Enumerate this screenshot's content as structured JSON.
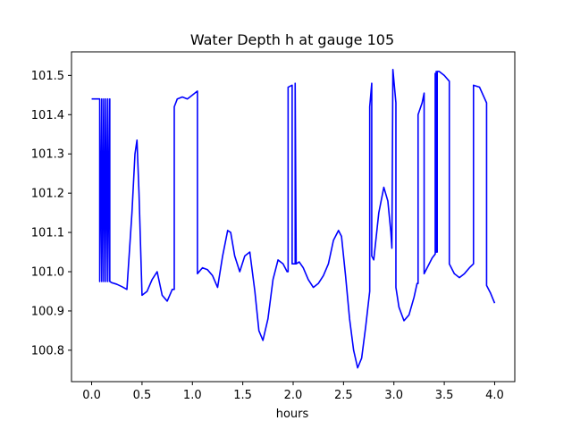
{
  "chart_data": {
    "type": "line",
    "title": "Water Depth h at gauge 105",
    "xlabel": "hours",
    "ylabel": "",
    "xlim": [
      -0.2,
      4.2
    ],
    "ylim": [
      100.72,
      101.56
    ],
    "grid": false,
    "x_ticks": [
      0.0,
      0.5,
      1.0,
      1.5,
      2.0,
      2.5,
      3.0,
      3.5,
      4.0
    ],
    "x_tick_labels": [
      "0.0",
      "0.5",
      "1.0",
      "1.5",
      "2.0",
      "2.5",
      "3.0",
      "3.5",
      "4.0"
    ],
    "y_ticks": [
      100.8,
      100.9,
      101.0,
      101.1,
      101.2,
      101.3,
      101.4,
      101.5
    ],
    "y_tick_labels": [
      "100.8",
      "100.9",
      "101.0",
      "101.1",
      "101.2",
      "101.3",
      "101.4",
      "101.5"
    ],
    "series": [
      {
        "color": "#0000ff",
        "x": [
          0.0,
          0.08,
          0.08,
          0.1,
          0.1,
          0.12,
          0.12,
          0.14,
          0.14,
          0.16,
          0.16,
          0.18,
          0.18,
          0.2,
          0.25,
          0.3,
          0.35,
          0.4,
          0.43,
          0.45,
          0.47,
          0.5,
          0.55,
          0.6,
          0.65,
          0.7,
          0.75,
          0.8,
          0.82,
          0.82,
          0.85,
          0.9,
          0.95,
          1.0,
          1.05,
          1.05,
          1.1,
          1.15,
          1.2,
          1.25,
          1.3,
          1.35,
          1.38,
          1.42,
          1.47,
          1.52,
          1.57,
          1.62,
          1.66,
          1.7,
          1.75,
          1.8,
          1.85,
          1.9,
          1.94,
          1.95,
          1.95,
          1.99,
          1.99,
          2.02,
          2.02,
          2.03,
          2.06,
          2.1,
          2.15,
          2.2,
          2.25,
          2.3,
          2.35,
          2.4,
          2.45,
          2.48,
          2.52,
          2.56,
          2.6,
          2.64,
          2.68,
          2.72,
          2.76,
          2.76,
          2.78,
          2.78,
          2.78,
          2.8,
          2.85,
          2.9,
          2.94,
          2.97,
          2.98,
          2.99,
          3.02,
          3.02,
          3.05,
          3.1,
          3.15,
          3.2,
          3.23,
          3.24,
          3.24,
          3.28,
          3.3,
          3.3,
          3.35,
          3.38,
          3.41,
          3.41,
          3.41,
          3.42,
          3.42,
          3.43,
          3.43,
          3.45,
          3.5,
          3.55,
          3.55,
          3.6,
          3.65,
          3.7,
          3.75,
          3.79,
          3.79,
          3.85,
          3.92,
          3.92,
          3.96,
          4.0
        ],
        "y": [
          101.44,
          101.44,
          100.975,
          101.44,
          100.975,
          101.44,
          100.975,
          101.44,
          100.975,
          101.44,
          100.975,
          101.44,
          100.975,
          100.972,
          100.968,
          100.962,
          100.955,
          101.15,
          101.3,
          101.335,
          101.2,
          100.94,
          100.95,
          100.98,
          101.0,
          100.94,
          100.925,
          100.955,
          100.955,
          101.42,
          101.44,
          101.445,
          101.44,
          101.45,
          101.46,
          100.995,
          101.01,
          101.005,
          100.99,
          100.96,
          101.04,
          101.105,
          101.1,
          101.04,
          101.0,
          101.04,
          101.05,
          100.95,
          100.85,
          100.825,
          100.88,
          100.98,
          101.03,
          101.02,
          101.0,
          101.0,
          101.47,
          101.475,
          101.02,
          101.02,
          101.48,
          101.02,
          101.025,
          101.01,
          100.98,
          100.96,
          100.97,
          100.99,
          101.02,
          101.08,
          101.105,
          101.09,
          100.99,
          100.88,
          100.8,
          100.755,
          100.78,
          100.86,
          100.95,
          101.42,
          101.48,
          101.48,
          101.04,
          101.03,
          101.15,
          101.215,
          101.18,
          101.1,
          101.06,
          101.515,
          101.43,
          100.96,
          100.91,
          100.875,
          100.89,
          100.935,
          100.97,
          100.97,
          101.4,
          101.43,
          101.455,
          100.995,
          101.02,
          101.035,
          101.045,
          101.505,
          101.045,
          101.51,
          101.05,
          101.05,
          101.51,
          101.51,
          101.5,
          101.485,
          101.02,
          100.995,
          100.985,
          100.995,
          101.01,
          101.02,
          101.475,
          101.47,
          101.43,
          100.965,
          100.945,
          100.92
        ]
      }
    ]
  }
}
